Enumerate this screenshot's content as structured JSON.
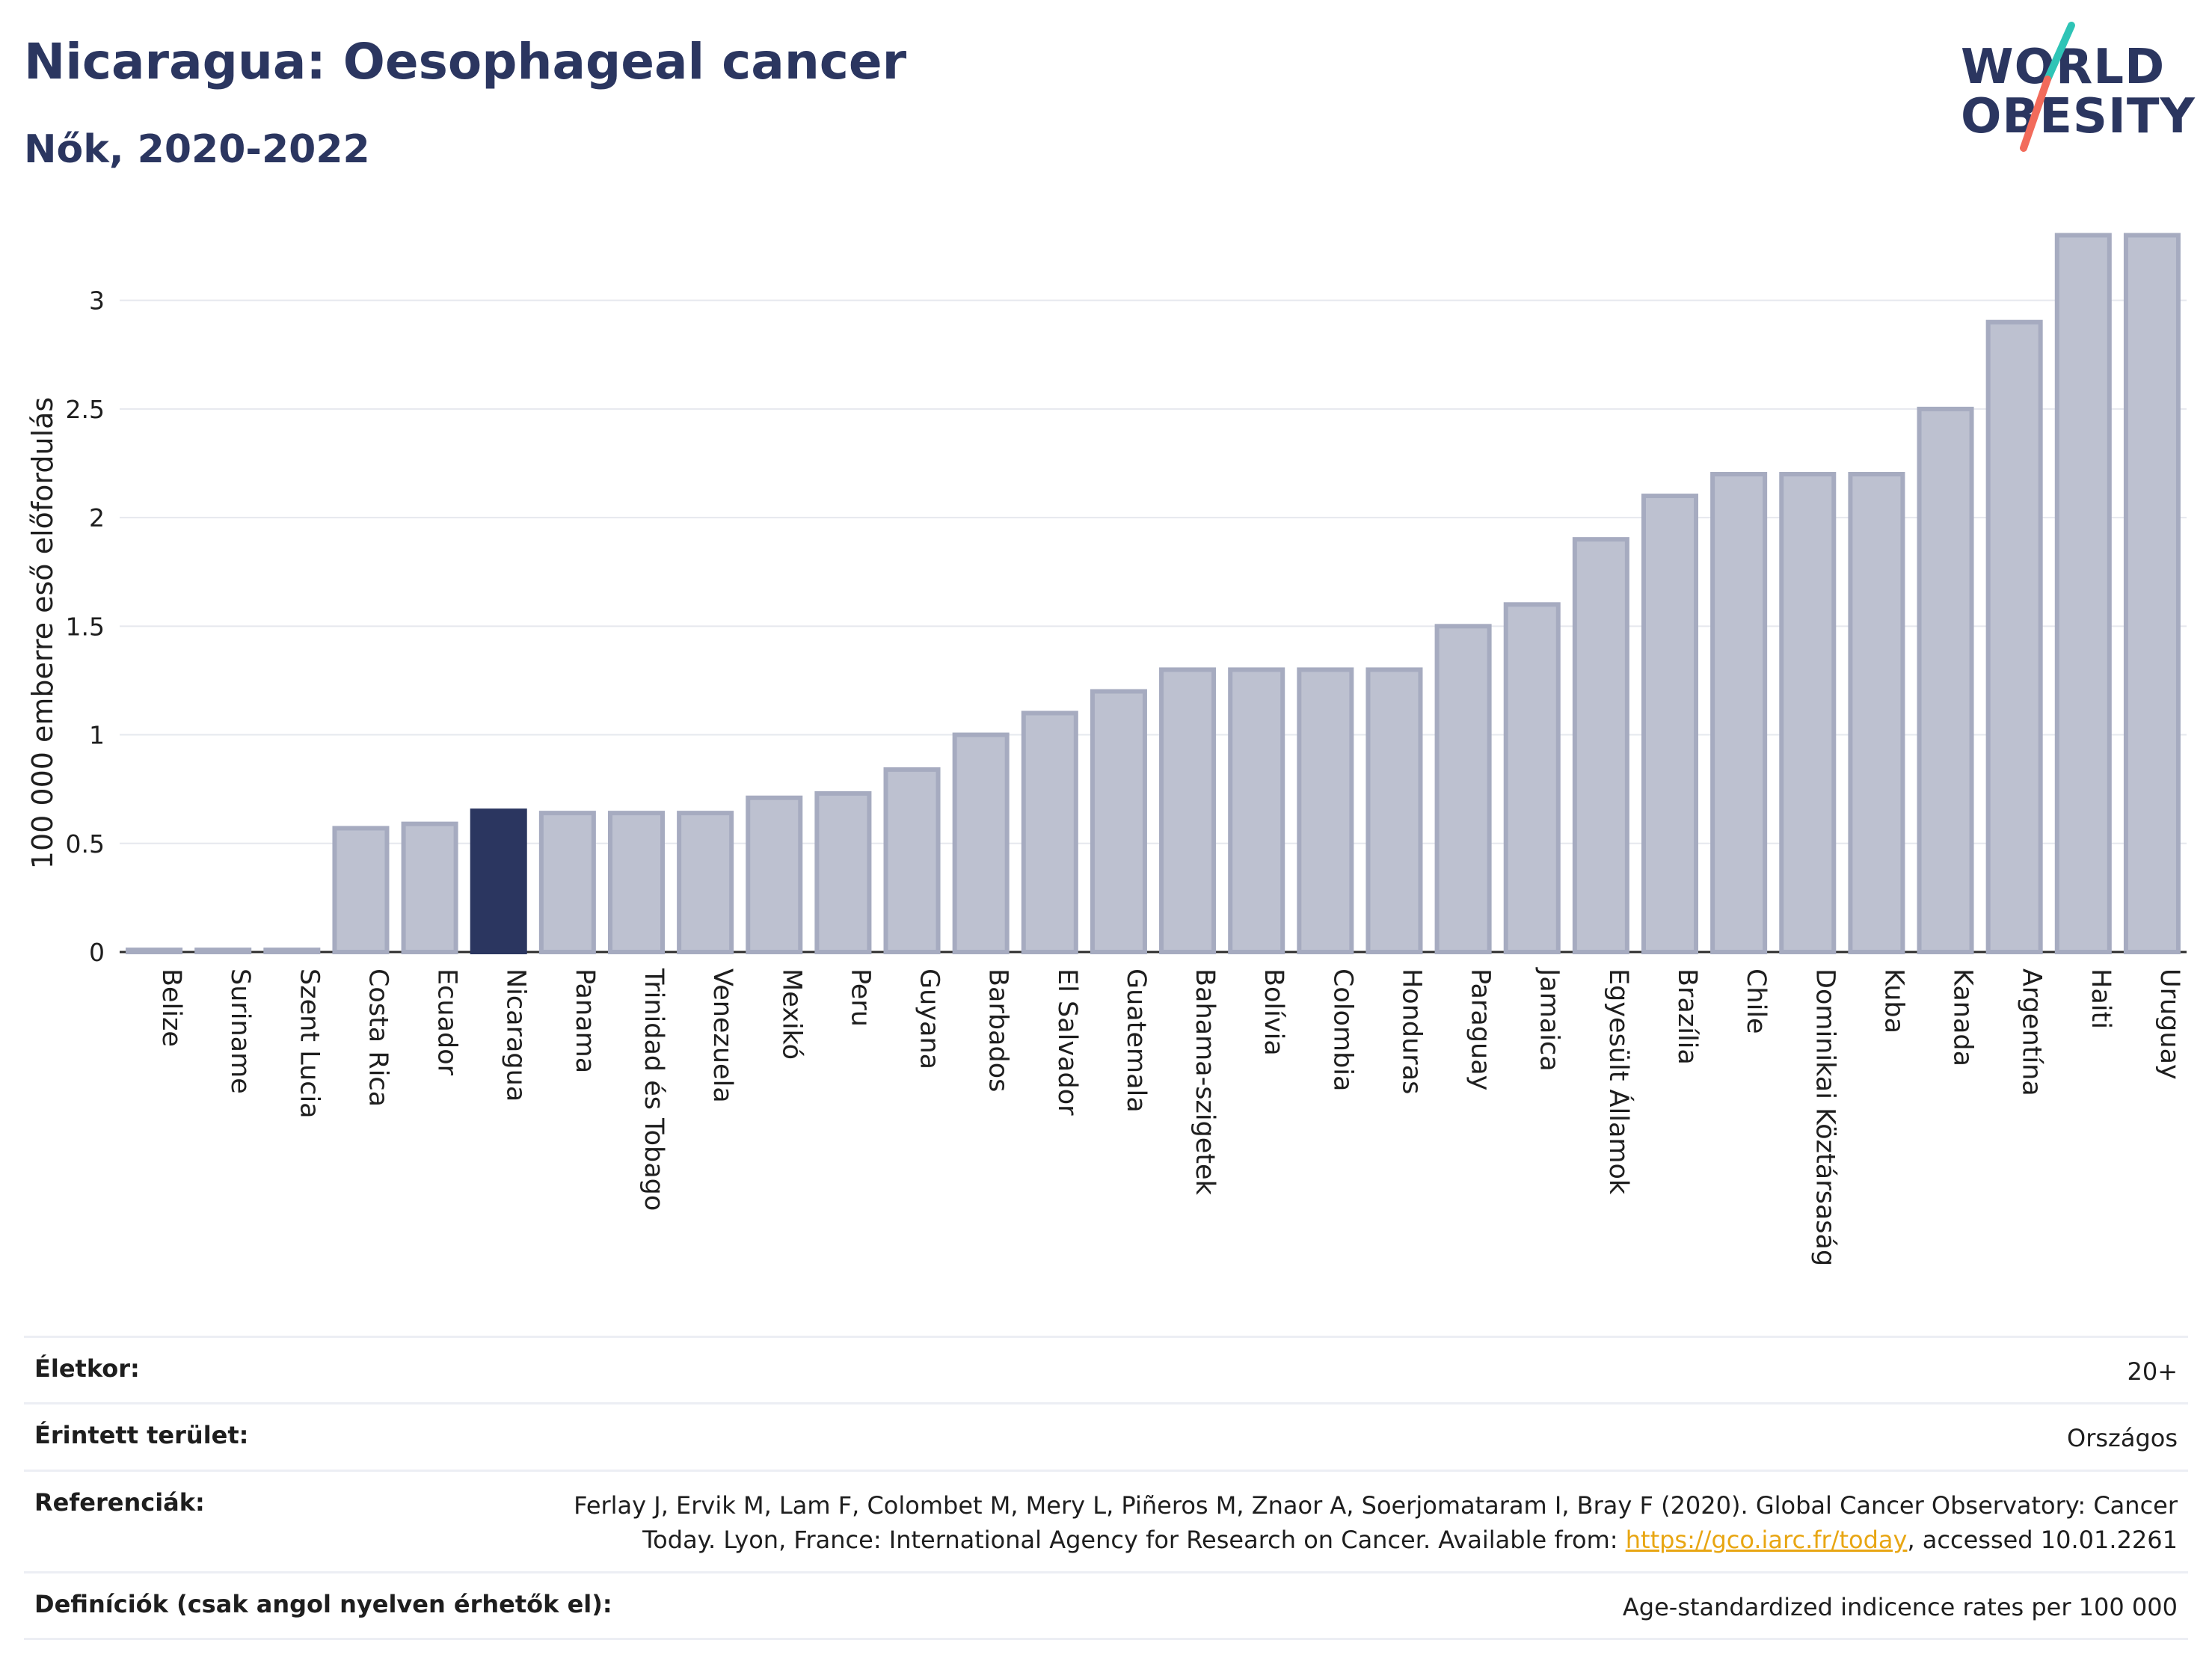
{
  "header": {
    "title": "Nicaragua: Oesophageal cancer",
    "subtitle": "Nők, 2020-2022"
  },
  "logo": {
    "line1": "WORLD",
    "line2": "OBESITY",
    "colors": {
      "text": "#2b3660",
      "slash_teal": "#2ec4b6",
      "slash_coral": "#f26b5b"
    }
  },
  "chart_data": {
    "type": "bar",
    "ylabel": "100 000 emberre eső előfordulás",
    "ylim": [
      0,
      3.35
    ],
    "yticks": [
      0,
      0.5,
      1,
      1.5,
      2,
      2.5,
      3
    ],
    "ytick_labels": [
      "0",
      "0.5",
      "1",
      "1.5",
      "2",
      "2.5",
      "3"
    ],
    "grid": true,
    "highlight": "Nicaragua",
    "colors": {
      "bar": "#bdc1d0",
      "bar_border": "#a6abc0",
      "highlight": "#2b3660"
    },
    "categories": [
      "Belize",
      "Suriname",
      "Szent Lucia",
      "Costa Rica",
      "Ecuador",
      "Nicaragua",
      "Panama",
      "Trinidad és Tobago",
      "Venezuela",
      "Mexikó",
      "Peru",
      "Guyana",
      "Barbados",
      "El Salvador",
      "Guatemala",
      "Bahama-szigetek",
      "Bolívia",
      "Colombia",
      "Honduras",
      "Paraguay",
      "Jamaica",
      "Egyesült Államok",
      "Brazília",
      "Chile",
      "Dominikai Köztársaság",
      "Kuba",
      "Kanada",
      "Argentína",
      "Haiti",
      "Uruguay"
    ],
    "values": [
      0.01,
      0.01,
      0.01,
      0.57,
      0.59,
      0.65,
      0.64,
      0.64,
      0.64,
      0.71,
      0.73,
      0.84,
      1.0,
      1.1,
      1.2,
      1.3,
      1.3,
      1.3,
      1.3,
      1.5,
      1.6,
      1.9,
      2.1,
      2.2,
      2.2,
      2.2,
      2.5,
      2.9,
      3.3,
      3.3
    ]
  },
  "meta": [
    {
      "key": "Életkor:",
      "value": "20+"
    },
    {
      "key": "Érintett terület:",
      "value": "Országos"
    },
    {
      "key": "Referenciák:",
      "value_line1": "Ferlay J, Ervik M, Lam F, Colombet M, Mery L, Piñeros M, Znaor A, Soerjomataram I, Bray F (2020). Global Cancer Observatory: Cancer",
      "value_line2_pre": "Today. Lyon, France: International Agency for Research on Cancer. Available from: ",
      "link": "https://gco.iarc.fr/today",
      "value_line2_post": ", accessed 10.01.2261"
    },
    {
      "key": "Definíciók (csak angol nyelven érhetők el):",
      "value": "Age-standardized indicence rates per 100 000"
    }
  ]
}
